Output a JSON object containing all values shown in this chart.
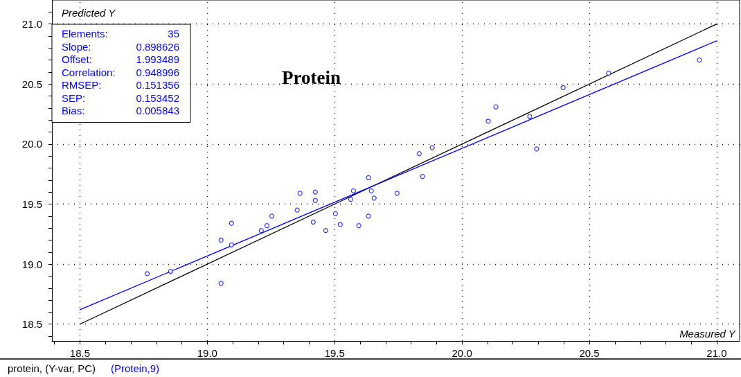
{
  "chart_data": {
    "type": "scatter",
    "title": "Protein",
    "xlabel": "Measured Y",
    "ylabel": "Predicted Y",
    "annotations": [
      "Elements: 35",
      "Slope: 0.898626",
      "Offset: 1.993489",
      "Correlation: 0.948996",
      "RMSEP: 0.151356",
      "SEP: 0.153452",
      "Bias: 0.005843",
      "protein, (Y-var, PC)",
      "(Protein,9)"
    ],
    "xlim": [
      18.39,
      21.09
    ],
    "ylim": [
      18.36,
      21.2
    ],
    "xticks": [
      {
        "value": 18.4,
        "label": null
      },
      {
        "value": 18.5,
        "label": "18.5"
      },
      {
        "value": 18.6,
        "label": null
      },
      {
        "value": 18.7,
        "label": null
      },
      {
        "value": 18.8,
        "label": null
      },
      {
        "value": 18.9,
        "label": null
      },
      {
        "value": 19.0,
        "label": "19.0"
      },
      {
        "value": 19.1,
        "label": null
      },
      {
        "value": 19.2,
        "label": null
      },
      {
        "value": 19.3,
        "label": null
      },
      {
        "value": 19.4,
        "label": null
      },
      {
        "value": 19.5,
        "label": "19.5"
      },
      {
        "value": 19.6,
        "label": null
      },
      {
        "value": 19.7,
        "label": null
      },
      {
        "value": 19.8,
        "label": null
      },
      {
        "value": 19.9,
        "label": null
      },
      {
        "value": 20.0,
        "label": "20.0"
      },
      {
        "value": 20.1,
        "label": null
      },
      {
        "value": 20.2,
        "label": null
      },
      {
        "value": 20.3,
        "label": null
      },
      {
        "value": 20.4,
        "label": null
      },
      {
        "value": 20.5,
        "label": "20.5"
      },
      {
        "value": 20.6,
        "label": null
      },
      {
        "value": 20.7,
        "label": null
      },
      {
        "value": 20.8,
        "label": null
      },
      {
        "value": 20.9,
        "label": null
      },
      {
        "value": 21.0,
        "label": "21.0"
      }
    ],
    "yticks": [
      {
        "value": 18.4,
        "label": null
      },
      {
        "value": 18.5,
        "label": "18.5"
      },
      {
        "value": 18.6,
        "label": null
      },
      {
        "value": 18.7,
        "label": null
      },
      {
        "value": 18.8,
        "label": null
      },
      {
        "value": 18.9,
        "label": null
      },
      {
        "value": 19.0,
        "label": "19.0"
      },
      {
        "value": 19.1,
        "label": null
      },
      {
        "value": 19.2,
        "label": null
      },
      {
        "value": 19.3,
        "label": null
      },
      {
        "value": 19.4,
        "label": null
      },
      {
        "value": 19.5,
        "label": "19.5"
      },
      {
        "value": 19.6,
        "label": null
      },
      {
        "value": 19.7,
        "label": null
      },
      {
        "value": 19.8,
        "label": null
      },
      {
        "value": 19.9,
        "label": null
      },
      {
        "value": 20.0,
        "label": "20.0"
      },
      {
        "value": 20.1,
        "label": null
      },
      {
        "value": 20.2,
        "label": null
      },
      {
        "value": 20.3,
        "label": null
      },
      {
        "value": 20.4,
        "label": null
      },
      {
        "value": 20.5,
        "label": "20.5"
      },
      {
        "value": 20.6,
        "label": null
      },
      {
        "value": 20.7,
        "label": null
      },
      {
        "value": 20.8,
        "label": null
      },
      {
        "value": 20.9,
        "label": null
      },
      {
        "value": 21.0,
        "label": "21.0"
      },
      {
        "value": 21.1,
        "label": null
      }
    ],
    "grid": true,
    "marker": "circle",
    "series": [
      {
        "type": "line",
        "color": "#000000",
        "x": [
          18.5,
          21.0
        ],
        "values": [
          18.5,
          21.0
        ],
        "marker": "none"
      },
      {
        "type": "line",
        "color": "#0000ff",
        "x": [
          18.5,
          21.0
        ],
        "values": [
          18.62,
          20.86
        ],
        "marker": "none"
      },
      {
        "color": "#0000ff",
        "x": [
          18.764,
          18.856,
          19.054,
          19.054,
          19.095,
          19.095,
          19.212,
          19.234,
          19.253,
          19.353,
          19.364,
          19.416,
          19.424,
          19.424,
          19.465,
          19.503,
          19.522,
          19.563,
          19.574,
          19.595,
          19.633,
          19.633,
          19.644,
          19.655,
          19.745,
          19.832,
          19.845,
          19.883,
          20.103,
          20.133,
          20.266,
          20.293,
          20.397,
          20.576,
          20.932
        ],
        "values": [
          18.92,
          18.94,
          18.84,
          19.2,
          19.16,
          19.34,
          19.28,
          19.32,
          19.4,
          19.45,
          19.59,
          19.35,
          19.53,
          19.6,
          19.28,
          19.42,
          19.33,
          19.54,
          19.61,
          19.32,
          19.4,
          19.72,
          19.61,
          19.55,
          19.59,
          19.92,
          19.73,
          19.97,
          20.19,
          20.31,
          20.23,
          19.96,
          20.47,
          20.59,
          20.7
        ]
      }
    ]
  }
}
